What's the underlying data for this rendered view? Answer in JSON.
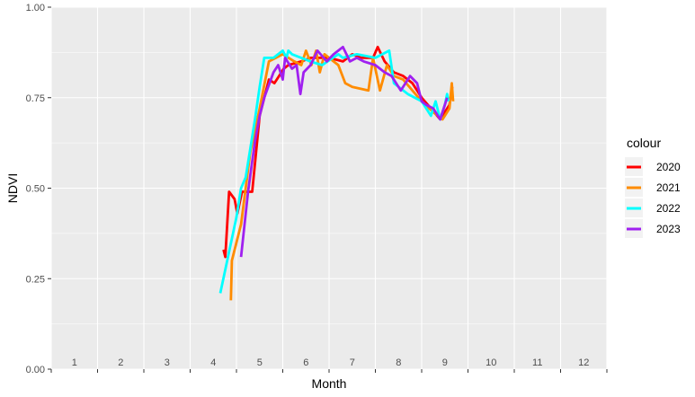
{
  "chart_data": {
    "type": "line",
    "xlabel": "Month",
    "ylabel": "NDVI",
    "xlim": [
      0,
      12
    ],
    "ylim": [
      0,
      1
    ],
    "x_ticks": [
      "1",
      "2",
      "3",
      "4",
      "5",
      "6",
      "7",
      "8",
      "9",
      "10",
      "11",
      "12"
    ],
    "y_ticks": [
      "0.00",
      "0.25",
      "0.50",
      "0.75",
      "1.00"
    ],
    "grid": true,
    "legend": {
      "title": "colour",
      "position": "right"
    },
    "series": [
      {
        "name": "2020",
        "color": "#ff0000",
        "points": [
          [
            3.72,
            0.33
          ],
          [
            3.76,
            0.31
          ],
          [
            3.84,
            0.49
          ],
          [
            3.96,
            0.47
          ],
          [
            4.02,
            0.43
          ],
          [
            4.12,
            0.49
          ],
          [
            4.34,
            0.49
          ],
          [
            4.5,
            0.7
          ],
          [
            4.7,
            0.8
          ],
          [
            4.82,
            0.79
          ],
          [
            4.92,
            0.81
          ],
          [
            5.02,
            0.83
          ],
          [
            5.12,
            0.84
          ],
          [
            5.4,
            0.85
          ],
          [
            5.6,
            0.86
          ],
          [
            6,
            0.86
          ],
          [
            6.3,
            0.85
          ],
          [
            6.5,
            0.87
          ],
          [
            6.7,
            0.86
          ],
          [
            6.95,
            0.86
          ],
          [
            7.05,
            0.89
          ],
          [
            7.2,
            0.85
          ],
          [
            7.4,
            0.82
          ],
          [
            7.6,
            0.81
          ],
          [
            7.8,
            0.79
          ],
          [
            8.0,
            0.75
          ],
          [
            8.2,
            0.72
          ],
          [
            8.4,
            0.69
          ],
          [
            8.6,
            0.73
          ],
          [
            8.66,
            0.78
          ]
        ]
      },
      {
        "name": "2021",
        "color": "#ff8c00",
        "points": [
          [
            3.88,
            0.19
          ],
          [
            3.9,
            0.3
          ],
          [
            4.1,
            0.4
          ],
          [
            4.3,
            0.6
          ],
          [
            4.5,
            0.72
          ],
          [
            4.7,
            0.85
          ],
          [
            5.0,
            0.87
          ],
          [
            5.25,
            0.85
          ],
          [
            5.4,
            0.84
          ],
          [
            5.5,
            0.88
          ],
          [
            5.62,
            0.84
          ],
          [
            5.72,
            0.88
          ],
          [
            5.8,
            0.82
          ],
          [
            5.9,
            0.87
          ],
          [
            6.2,
            0.84
          ],
          [
            6.35,
            0.79
          ],
          [
            6.5,
            0.78
          ],
          [
            6.85,
            0.77
          ],
          [
            6.95,
            0.86
          ],
          [
            7.1,
            0.77
          ],
          [
            7.25,
            0.84
          ],
          [
            7.4,
            0.81
          ],
          [
            7.6,
            0.8
          ],
          [
            8.0,
            0.74
          ],
          [
            8.25,
            0.71
          ],
          [
            8.45,
            0.69
          ],
          [
            8.6,
            0.72
          ],
          [
            8.65,
            0.79
          ],
          [
            8.68,
            0.74
          ]
        ]
      },
      {
        "name": "2022",
        "color": "#00ffff",
        "points": [
          [
            3.65,
            0.21
          ],
          [
            4.0,
            0.42
          ],
          [
            4.1,
            0.5
          ],
          [
            4.2,
            0.53
          ],
          [
            4.4,
            0.69
          ],
          [
            4.5,
            0.78
          ],
          [
            4.6,
            0.86
          ],
          [
            4.8,
            0.86
          ],
          [
            5.0,
            0.88
          ],
          [
            5.08,
            0.86
          ],
          [
            5.12,
            0.88
          ],
          [
            5.2,
            0.87
          ],
          [
            5.4,
            0.86
          ],
          [
            5.6,
            0.85
          ],
          [
            5.85,
            0.84
          ],
          [
            6.2,
            0.87
          ],
          [
            6.3,
            0.86
          ],
          [
            6.6,
            0.87
          ],
          [
            7.0,
            0.86
          ],
          [
            7.3,
            0.88
          ],
          [
            7.4,
            0.79
          ],
          [
            7.7,
            0.76
          ],
          [
            8.0,
            0.74
          ],
          [
            8.2,
            0.7
          ],
          [
            8.3,
            0.74
          ],
          [
            8.4,
            0.69
          ],
          [
            8.5,
            0.73
          ],
          [
            8.55,
            0.76
          ],
          [
            8.58,
            0.74
          ]
        ]
      },
      {
        "name": "2023",
        "color": "#a020f0",
        "points": [
          [
            4.1,
            0.31
          ],
          [
            4.2,
            0.43
          ],
          [
            4.25,
            0.49
          ],
          [
            4.4,
            0.63
          ],
          [
            4.5,
            0.7
          ],
          [
            4.6,
            0.75
          ],
          [
            4.8,
            0.82
          ],
          [
            4.9,
            0.84
          ],
          [
            5.0,
            0.8
          ],
          [
            5.05,
            0.86
          ],
          [
            5.2,
            0.83
          ],
          [
            5.3,
            0.84
          ],
          [
            5.38,
            0.76
          ],
          [
            5.45,
            0.82
          ],
          [
            5.6,
            0.84
          ],
          [
            5.75,
            0.88
          ],
          [
            5.95,
            0.85
          ],
          [
            6.1,
            0.87
          ],
          [
            6.3,
            0.89
          ],
          [
            6.45,
            0.85
          ],
          [
            6.6,
            0.86
          ],
          [
            6.75,
            0.85
          ],
          [
            7.0,
            0.84
          ],
          [
            7.2,
            0.82
          ],
          [
            7.35,
            0.81
          ],
          [
            7.55,
            0.77
          ],
          [
            7.75,
            0.81
          ],
          [
            7.9,
            0.79
          ],
          [
            8.0,
            0.74
          ],
          [
            8.1,
            0.73
          ],
          [
            8.25,
            0.72
          ],
          [
            8.4,
            0.69
          ],
          [
            8.55,
            0.75
          ]
        ]
      }
    ]
  }
}
